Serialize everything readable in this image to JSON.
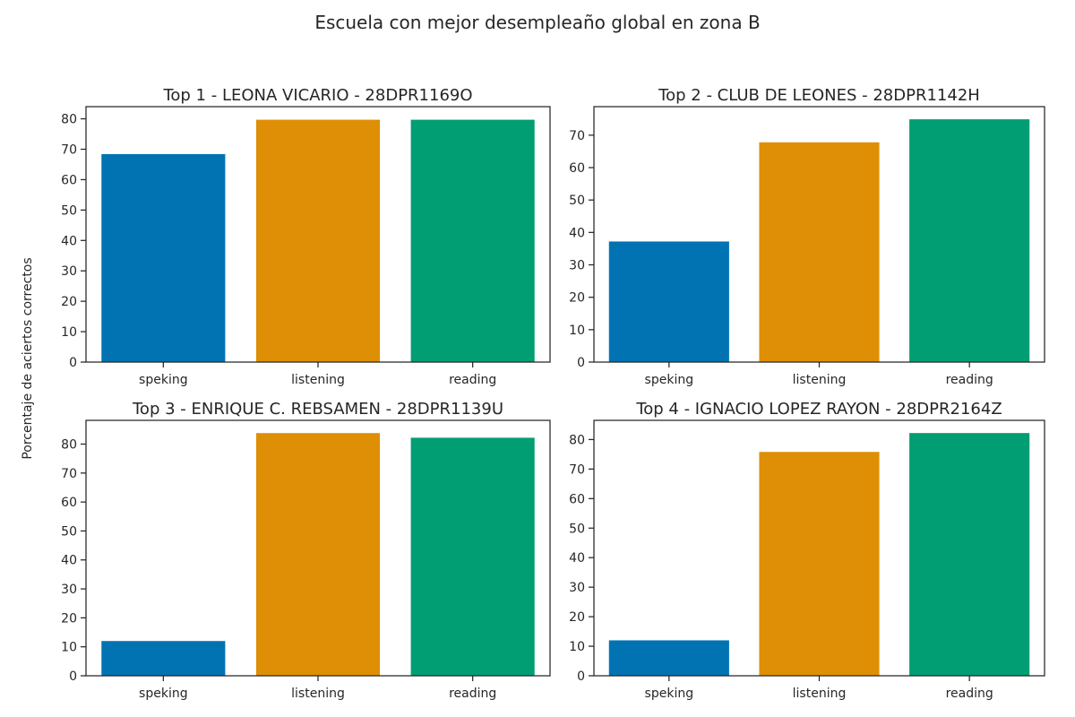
{
  "figure": {
    "suptitle": "Escuela con mejor desempleaño global en zona B",
    "ylabel": "Porcentaje de aciertos correctos"
  },
  "colors": [
    "#0173b2",
    "#de8f05",
    "#029e73"
  ],
  "chart_data": [
    {
      "type": "bar",
      "title": "Top  1 - LEONA VICARIO - 28DPR1169O",
      "categories": [
        "speking",
        "listening",
        "reading"
      ],
      "values": [
        68.4,
        79.7,
        79.7
      ],
      "ylim": [
        0,
        84
      ],
      "yticks": [
        0,
        10,
        20,
        30,
        40,
        50,
        60,
        70,
        80
      ],
      "xlabel": "",
      "ylabel": ""
    },
    {
      "type": "bar",
      "title": "Top  2 - CLUB DE LEONES - 28DPR1142H",
      "categories": [
        "speking",
        "listening",
        "reading"
      ],
      "values": [
        37.2,
        67.8,
        74.9
      ],
      "ylim": [
        0,
        78.8
      ],
      "yticks": [
        0,
        10,
        20,
        30,
        40,
        50,
        60,
        70
      ],
      "xlabel": "",
      "ylabel": ""
    },
    {
      "type": "bar",
      "title": "Top  3 - ENRIQUE C. REBSAMEN - 28DPR1139U",
      "categories": [
        "speking",
        "listening",
        "reading"
      ],
      "values": [
        12.0,
        83.8,
        82.2
      ],
      "ylim": [
        0,
        88.2
      ],
      "yticks": [
        0,
        10,
        20,
        30,
        40,
        50,
        60,
        70,
        80
      ],
      "xlabel": "",
      "ylabel": ""
    },
    {
      "type": "bar",
      "title": "Top  4 - IGNACIO LOPEZ RAYON - 28DPR2164Z",
      "categories": [
        "speking",
        "listening",
        "reading"
      ],
      "values": [
        12.0,
        75.8,
        82.2
      ],
      "ylim": [
        0,
        86.5
      ],
      "yticks": [
        0,
        10,
        20,
        30,
        40,
        50,
        60,
        70,
        80
      ],
      "xlabel": "",
      "ylabel": ""
    }
  ]
}
